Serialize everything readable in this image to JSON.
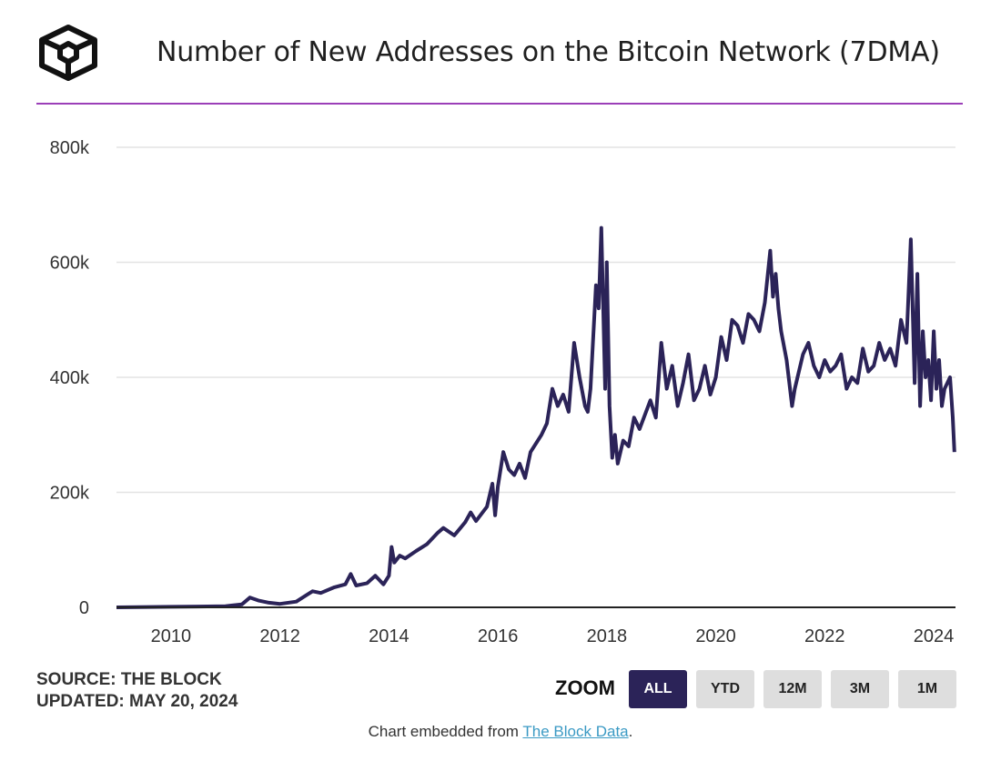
{
  "header": {
    "title": "Number of New Addresses on the Bitcoin Network (7DMA)"
  },
  "colors": {
    "accent_rule": "#9b3fb8",
    "line": "#2b2358",
    "active_button": "#2b2358",
    "link": "#3b9ac4"
  },
  "chart_data": {
    "type": "line",
    "title": "Number of New Addresses on the Bitcoin Network (7DMA)",
    "xlabel": "",
    "ylabel": "",
    "xlim": [
      2009.0,
      2024.4
    ],
    "ylim": [
      0,
      800000
    ],
    "y_ticks": [
      {
        "value": 0,
        "label": "0"
      },
      {
        "value": 200000,
        "label": "200k"
      },
      {
        "value": 400000,
        "label": "400k"
      },
      {
        "value": 600000,
        "label": "600k"
      },
      {
        "value": 800000,
        "label": "800k"
      }
    ],
    "x_ticks": [
      {
        "value": 2010,
        "label": "2010"
      },
      {
        "value": 2012,
        "label": "2012"
      },
      {
        "value": 2014,
        "label": "2014"
      },
      {
        "value": 2016,
        "label": "2016"
      },
      {
        "value": 2018,
        "label": "2018"
      },
      {
        "value": 2020,
        "label": "2020"
      },
      {
        "value": 2022,
        "label": "2022"
      },
      {
        "value": 2024,
        "label": "2024"
      }
    ],
    "grid": true,
    "legend": "none",
    "series": [
      {
        "x": [
          2009.0,
          2010.0,
          2010.5,
          2011.0,
          2011.3,
          2011.45,
          2011.6,
          2011.8,
          2012.0,
          2012.3,
          2012.5,
          2012.6,
          2012.75,
          2013.0,
          2013.2,
          2013.3,
          2013.4,
          2013.6,
          2013.75,
          2013.9,
          2014.0,
          2014.05,
          2014.1,
          2014.2,
          2014.3,
          2014.5,
          2014.7,
          2014.9,
          2015.0,
          2015.2,
          2015.4,
          2015.5,
          2015.6,
          2015.8,
          2015.9,
          2015.95,
          2016.0,
          2016.1,
          2016.2,
          2016.3,
          2016.4,
          2016.5,
          2016.6,
          2016.8,
          2016.9,
          2017.0,
          2017.1,
          2017.2,
          2017.3,
          2017.4,
          2017.5,
          2017.6,
          2017.65,
          2017.7,
          2017.8,
          2017.85,
          2017.9,
          2017.97,
          2018.0,
          2018.05,
          2018.1,
          2018.15,
          2018.2,
          2018.3,
          2018.4,
          2018.5,
          2018.6,
          2018.8,
          2018.9,
          2019.0,
          2019.1,
          2019.2,
          2019.3,
          2019.4,
          2019.5,
          2019.6,
          2019.7,
          2019.8,
          2019.9,
          2020.0,
          2020.1,
          2020.2,
          2020.3,
          2020.4,
          2020.5,
          2020.6,
          2020.7,
          2020.8,
          2020.9,
          2021.0,
          2021.05,
          2021.1,
          2021.15,
          2021.2,
          2021.3,
          2021.4,
          2021.45,
          2021.5,
          2021.6,
          2021.7,
          2021.8,
          2021.9,
          2022.0,
          2022.1,
          2022.2,
          2022.3,
          2022.4,
          2022.5,
          2022.6,
          2022.7,
          2022.8,
          2022.9,
          2023.0,
          2023.1,
          2023.2,
          2023.3,
          2023.4,
          2023.5,
          2023.58,
          2023.65,
          2023.7,
          2023.75,
          2023.8,
          2023.85,
          2023.9,
          2023.95,
          2024.0,
          2024.05,
          2024.1,
          2024.15,
          2024.2,
          2024.25,
          2024.3,
          2024.35,
          2024.38
        ],
        "y": [
          0,
          1000,
          1500,
          2000,
          5000,
          17000,
          12000,
          8000,
          6000,
          10000,
          22000,
          28000,
          25000,
          35000,
          40000,
          58000,
          38000,
          42000,
          55000,
          40000,
          55000,
          105000,
          78000,
          90000,
          85000,
          98000,
          110000,
          130000,
          138000,
          125000,
          148000,
          165000,
          150000,
          175000,
          215000,
          160000,
          210000,
          270000,
          240000,
          230000,
          250000,
          225000,
          270000,
          300000,
          320000,
          380000,
          350000,
          370000,
          340000,
          460000,
          400000,
          350000,
          340000,
          380000,
          560000,
          520000,
          660000,
          380000,
          600000,
          350000,
          260000,
          300000,
          250000,
          290000,
          280000,
          330000,
          310000,
          360000,
          330000,
          460000,
          380000,
          420000,
          350000,
          390000,
          440000,
          360000,
          380000,
          420000,
          370000,
          400000,
          470000,
          430000,
          500000,
          490000,
          460000,
          510000,
          500000,
          480000,
          530000,
          620000,
          540000,
          580000,
          520000,
          480000,
          430000,
          350000,
          380000,
          400000,
          440000,
          460000,
          420000,
          400000,
          430000,
          410000,
          420000,
          440000,
          380000,
          400000,
          390000,
          450000,
          410000,
          420000,
          460000,
          430000,
          450000,
          420000,
          500000,
          460000,
          640000,
          390000,
          580000,
          350000,
          480000,
          400000,
          430000,
          360000,
          480000,
          380000,
          430000,
          350000,
          380000,
          390000,
          400000,
          330000,
          270000
        ]
      }
    ]
  },
  "footer": {
    "source": "SOURCE: THE BLOCK",
    "updated": "UPDATED: MAY 20, 2024",
    "zoom_label": "ZOOM",
    "zoom_buttons": [
      {
        "label": "ALL",
        "active": true
      },
      {
        "label": "YTD",
        "active": false
      },
      {
        "label": "12M",
        "active": false
      },
      {
        "label": "3M",
        "active": false
      },
      {
        "label": "1M",
        "active": false
      }
    ],
    "embed_prefix": "Chart embedded from",
    "embed_link": "The Block Data",
    "embed_suffix": "."
  }
}
